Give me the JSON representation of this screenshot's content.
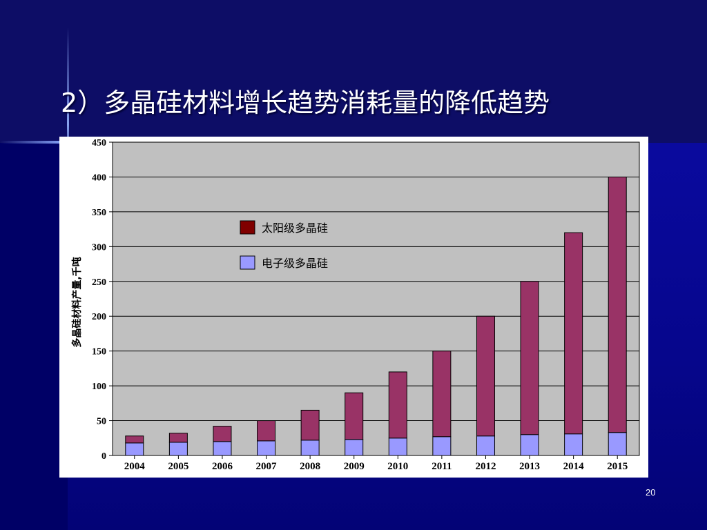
{
  "slide": {
    "title": "2）多晶硅材料增长趋势消耗量的降低趋势",
    "page_number": "20"
  },
  "colors": {
    "solar_series": "#993366",
    "electronic_series": "#9999ff",
    "legend_solar_swatch": "#800000",
    "plot_background": "#c0c0c0",
    "slide_background": "#000066"
  },
  "chart_data": {
    "type": "bar",
    "stacked": true,
    "categories": [
      "2004",
      "2005",
      "2006",
      "2007",
      "2008",
      "2009",
      "2010",
      "2011",
      "2012",
      "2013",
      "2014",
      "2015"
    ],
    "series": [
      {
        "name": "电子级多晶硅",
        "values": [
          18,
          19,
          20,
          21,
          22,
          23,
          25,
          27,
          28,
          30,
          31,
          33
        ]
      },
      {
        "name": "太阳级多晶硅",
        "values": [
          10,
          13,
          22,
          29,
          43,
          67,
          95,
          123,
          172,
          220,
          289,
          367
        ]
      }
    ],
    "totals": [
      28,
      32,
      42,
      50,
      65,
      90,
      120,
      150,
      200,
      250,
      320,
      400
    ],
    "ylabel": "多晶硅材料产量,千吨",
    "xlabel": "",
    "ylim": [
      0,
      450
    ],
    "yticks": [
      0,
      50,
      100,
      150,
      200,
      250,
      300,
      350,
      400,
      450
    ],
    "grid": true,
    "legend_position": "top-left",
    "legend": [
      "太阳级多晶硅",
      "电子级多晶硅"
    ]
  }
}
